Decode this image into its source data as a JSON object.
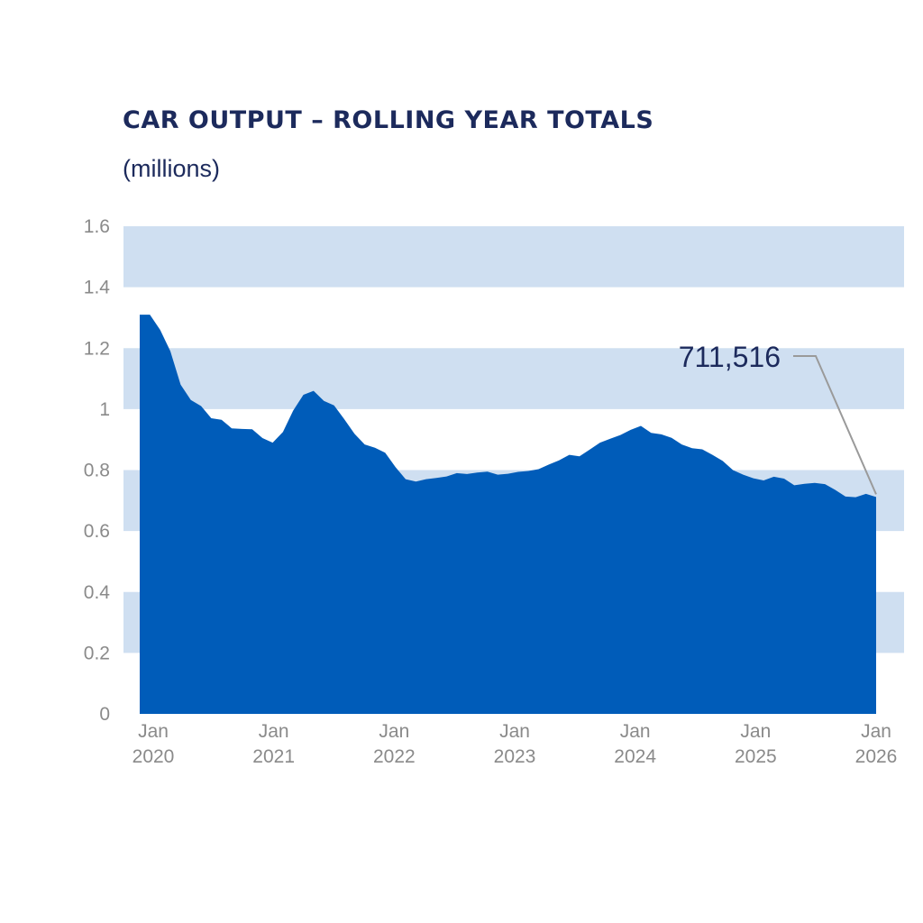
{
  "chart_data": {
    "type": "area",
    "title": "CAR OUTPUT – ROLLING YEAR TOTALS",
    "subtitle": "(millions)",
    "ylim": [
      0,
      1.6
    ],
    "y_ticks": [
      "0",
      "0.2",
      "0.4",
      "0.6",
      "0.8",
      "1",
      "1.2",
      "1.4",
      "1.6"
    ],
    "x_ticks": [
      {
        "month": "Jan",
        "year": "2020"
      },
      {
        "month": "Jan",
        "year": "2021"
      },
      {
        "month": "Jan",
        "year": "2022"
      },
      {
        "month": "Jan",
        "year": "2023"
      },
      {
        "month": "Jan",
        "year": "2024"
      },
      {
        "month": "Jan",
        "year": "2025"
      },
      {
        "month": "Jan",
        "year": "2026"
      }
    ],
    "x_start": "2020-01",
    "x_end": "2026-01",
    "band_color": "#cfdff1",
    "fill_color": "#005cb9",
    "values": [
      1.31,
      1.31,
      1.26,
      1.19,
      1.08,
      1.03,
      1.01,
      0.97,
      0.965,
      0.937,
      0.935,
      0.934,
      0.905,
      0.89,
      0.925,
      0.995,
      1.047,
      1.06,
      1.027,
      1.012,
      0.967,
      0.919,
      0.884,
      0.873,
      0.857,
      0.81,
      0.77,
      0.762,
      0.77,
      0.774,
      0.779,
      0.79,
      0.787,
      0.792,
      0.795,
      0.785,
      0.788,
      0.794,
      0.797,
      0.803,
      0.818,
      0.832,
      0.85,
      0.845,
      0.867,
      0.89,
      0.903,
      0.915,
      0.932,
      0.945,
      0.922,
      0.917,
      0.906,
      0.884,
      0.872,
      0.868,
      0.85,
      0.83,
      0.8,
      0.785,
      0.773,
      0.766,
      0.778,
      0.772,
      0.75,
      0.755,
      0.758,
      0.754,
      0.735,
      0.713,
      0.711,
      0.722,
      0.7115
    ],
    "annotation": {
      "label": "711,516",
      "value": 0.711516
    }
  }
}
